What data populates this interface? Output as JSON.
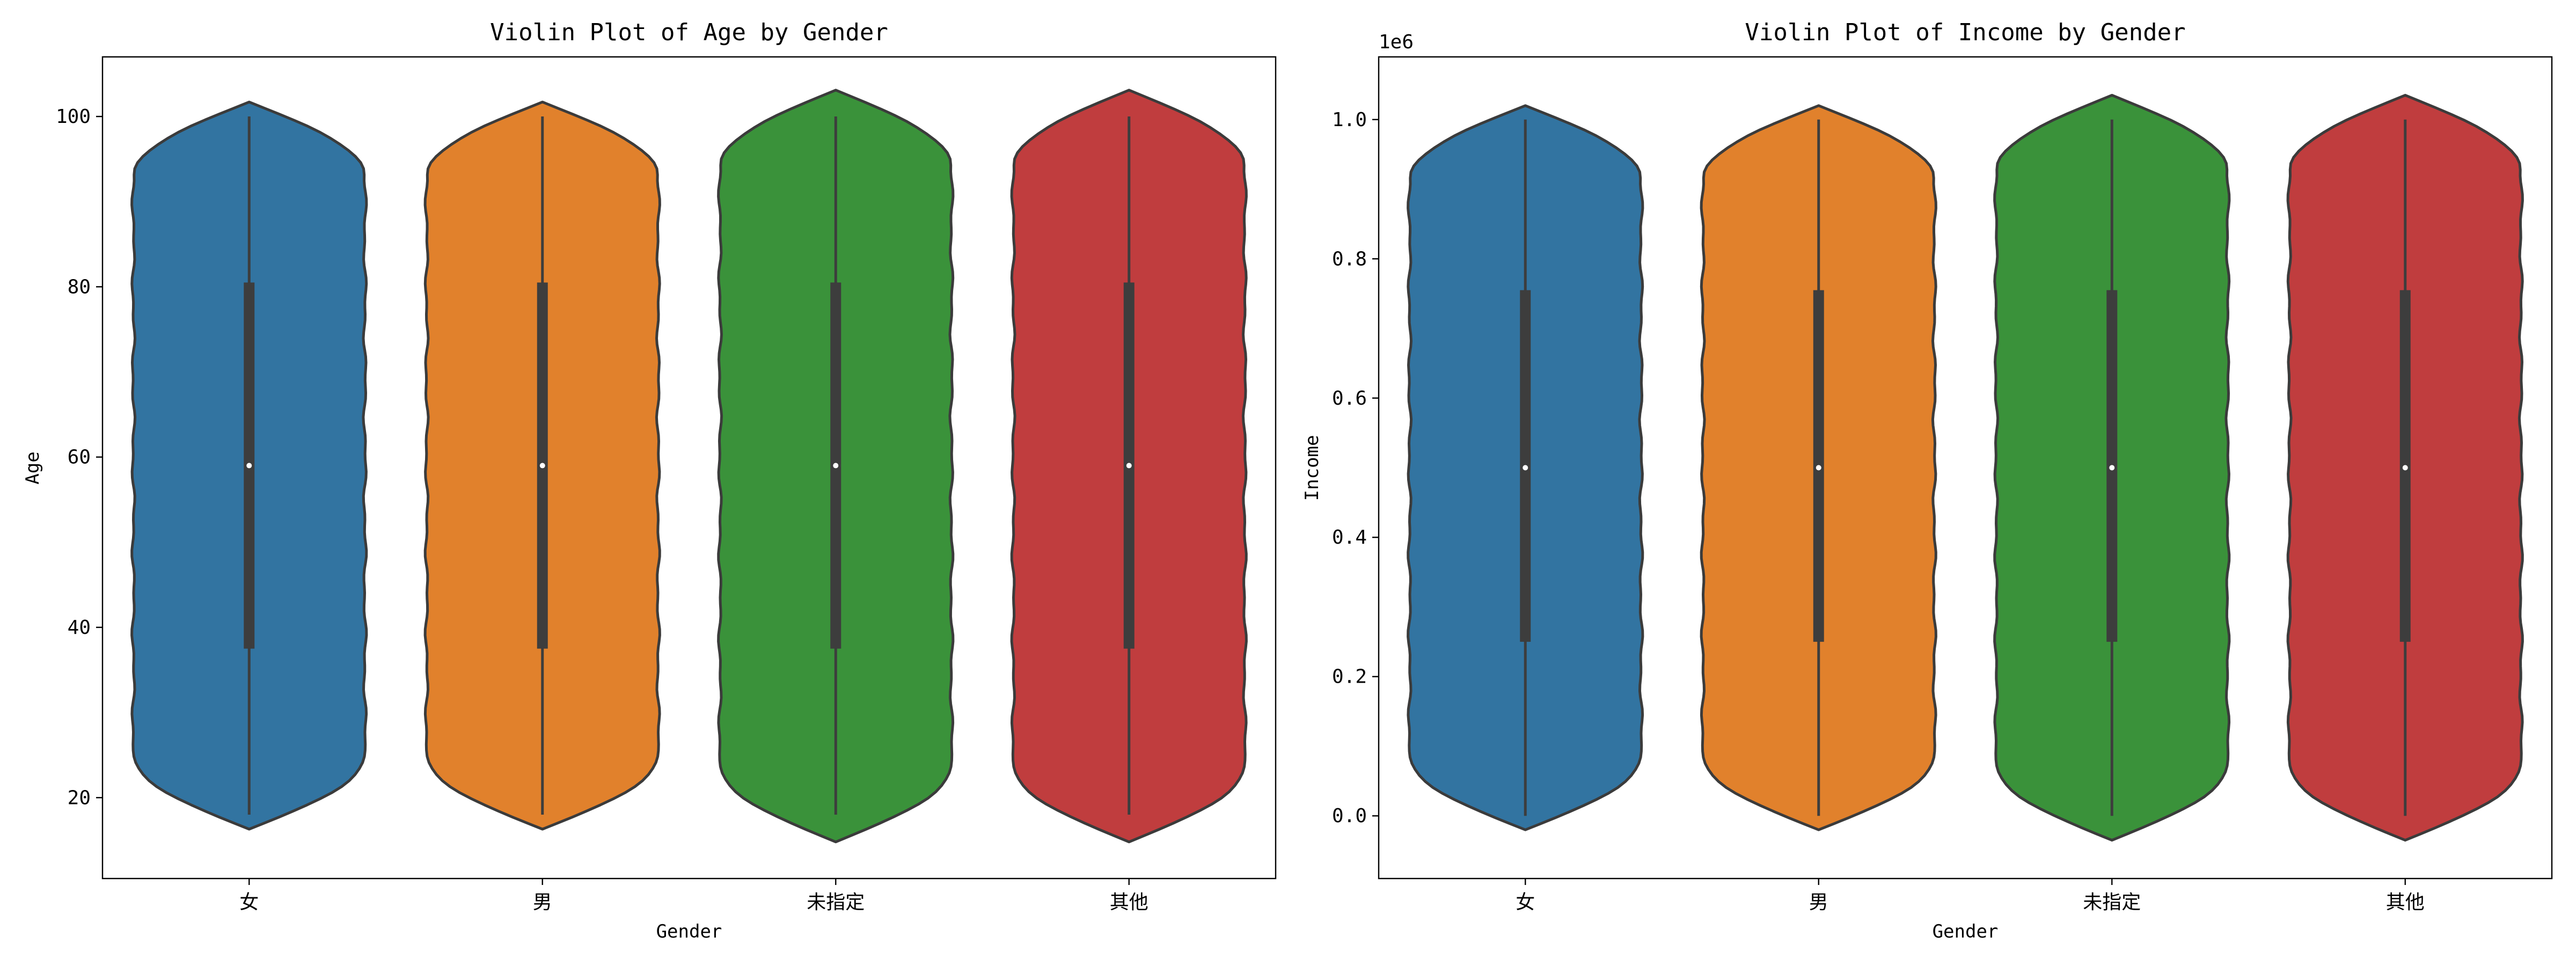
{
  "chart_data": [
    {
      "type": "violin",
      "title": "Violin Plot of Age by Gender",
      "xlabel": "Gender",
      "ylabel": "Age",
      "offset_text": "",
      "categories": [
        "女",
        "男",
        "未指定",
        "其他"
      ],
      "colors": [
        "#3274a1",
        "#e1812c",
        "#3a923a",
        "#c03d3e"
      ],
      "ylim": [
        10.5,
        107
      ],
      "yticks": [
        20,
        40,
        60,
        80,
        100
      ],
      "ytick_labels": [
        "20",
        "40",
        "60",
        "80",
        "100"
      ],
      "series": [
        {
          "category": "女",
          "min": 18,
          "q1": 37.5,
          "median": 59,
          "q3": 80.5,
          "max": 100,
          "kde_low": 16.3,
          "kde_high": 101.7
        },
        {
          "category": "男",
          "min": 18,
          "q1": 37.5,
          "median": 59,
          "q3": 80.5,
          "max": 100,
          "kde_low": 16.3,
          "kde_high": 101.7
        },
        {
          "category": "未指定",
          "min": 18,
          "q1": 37.5,
          "median": 59,
          "q3": 80.5,
          "max": 100,
          "kde_low": 14.8,
          "kde_high": 103.1
        },
        {
          "category": "其他",
          "min": 18,
          "q1": 37.5,
          "median": 59,
          "q3": 80.5,
          "max": 100,
          "kde_low": 14.8,
          "kde_high": 103.1
        }
      ]
    },
    {
      "type": "violin",
      "title": "Violin Plot of Income by Gender",
      "xlabel": "Gender",
      "ylabel": "Income",
      "offset_text": "1e6",
      "categories": [
        "女",
        "男",
        "未指定",
        "其他"
      ],
      "colors": [
        "#3274a1",
        "#e1812c",
        "#3a923a",
        "#c03d3e"
      ],
      "ylim": [
        -0.09,
        1.09
      ],
      "yticks": [
        0.0,
        0.2,
        0.4,
        0.6,
        0.8,
        1.0
      ],
      "ytick_labels": [
        "0.0",
        "0.2",
        "0.4",
        "0.6",
        "0.8",
        "1.0"
      ],
      "series": [
        {
          "category": "女",
          "min": 0.0,
          "q1": 0.25,
          "median": 0.5,
          "q3": 0.755,
          "max": 1.0,
          "kde_low": -0.02,
          "kde_high": 1.02
        },
        {
          "category": "男",
          "min": 0.0,
          "q1": 0.25,
          "median": 0.5,
          "q3": 0.755,
          "max": 1.0,
          "kde_low": -0.02,
          "kde_high": 1.02
        },
        {
          "category": "未指定",
          "min": 0.0,
          "q1": 0.25,
          "median": 0.5,
          "q3": 0.755,
          "max": 1.0,
          "kde_low": -0.035,
          "kde_high": 1.035
        },
        {
          "category": "其他",
          "min": 0.0,
          "q1": 0.25,
          "median": 0.5,
          "q3": 0.755,
          "max": 1.0,
          "kde_low": -0.035,
          "kde_high": 1.035
        }
      ]
    }
  ]
}
